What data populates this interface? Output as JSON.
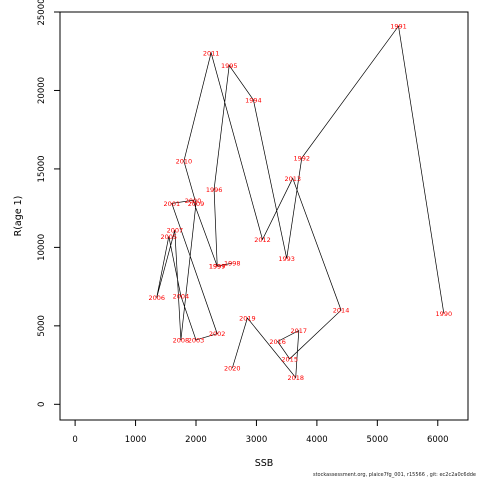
{
  "chart_data": {
    "type": "line",
    "xlabel": "SSB",
    "ylabel": "R(age 1)",
    "xlim": [
      -250,
      6500
    ],
    "ylim": [
      -1000,
      25000
    ],
    "xticks": [
      "0",
      "1000",
      "2000",
      "3000",
      "4000",
      "5000",
      "6000"
    ],
    "yticks": [
      "0",
      "5000",
      "10000",
      "15000",
      "20000",
      "25000"
    ],
    "xtick_values": [
      0,
      1000,
      2000,
      3000,
      4000,
      5000,
      6000
    ],
    "ytick_values": [
      0,
      5000,
      10000,
      15000,
      20000,
      25000
    ],
    "line_color": "#000000",
    "label_color": "#ff0000",
    "grid": false,
    "points": [
      {
        "year": "1990",
        "x": 6100,
        "y": 5800
      },
      {
        "year": "1991",
        "x": 5350,
        "y": 24100
      },
      {
        "year": "1992",
        "x": 3750,
        "y": 15700
      },
      {
        "year": "1993",
        "x": 3500,
        "y": 9300
      },
      {
        "year": "1994",
        "x": 2950,
        "y": 19400
      },
      {
        "year": "1995",
        "x": 2550,
        "y": 21600
      },
      {
        "year": "1996",
        "x": 2300,
        "y": 13700
      },
      {
        "year": "1997",
        "x": 2350,
        "y": 8800
      },
      {
        "year": "1998",
        "x": 2600,
        "y": 9000
      },
      {
        "year": "1999",
        "x": 2350,
        "y": 8800
      },
      {
        "year": "2000",
        "x": 1950,
        "y": 13000
      },
      {
        "year": "2001",
        "x": 1600,
        "y": 12800
      },
      {
        "year": "2002",
        "x": 2350,
        "y": 4500
      },
      {
        "year": "2003",
        "x": 2000,
        "y": 4100
      },
      {
        "year": "2004",
        "x": 1750,
        "y": 6900
      },
      {
        "year": "2005",
        "x": 1550,
        "y": 10700
      },
      {
        "year": "2006",
        "x": 1350,
        "y": 6800
      },
      {
        "year": "2007",
        "x": 1650,
        "y": 11100
      },
      {
        "year": "2008",
        "x": 1750,
        "y": 4100
      },
      {
        "year": "2009",
        "x": 2000,
        "y": 12800
      },
      {
        "year": "2010",
        "x": 1800,
        "y": 15500
      },
      {
        "year": "2011",
        "x": 2250,
        "y": 22400
      },
      {
        "year": "2012",
        "x": 3100,
        "y": 10500
      },
      {
        "year": "2013",
        "x": 3600,
        "y": 14400
      },
      {
        "year": "2014",
        "x": 4400,
        "y": 6000
      },
      {
        "year": "2015",
        "x": 3550,
        "y": 2900
      },
      {
        "year": "2016",
        "x": 3350,
        "y": 4000
      },
      {
        "year": "2017",
        "x": 3700,
        "y": 4700
      },
      {
        "year": "2018",
        "x": 3650,
        "y": 1700
      },
      {
        "year": "2019",
        "x": 2850,
        "y": 5500
      },
      {
        "year": "2020",
        "x": 2600,
        "y": 2300
      }
    ]
  },
  "footer_text": "stockassessment.org, plaice7fg_001, r15566 , git: ec2c2a0c6dde"
}
